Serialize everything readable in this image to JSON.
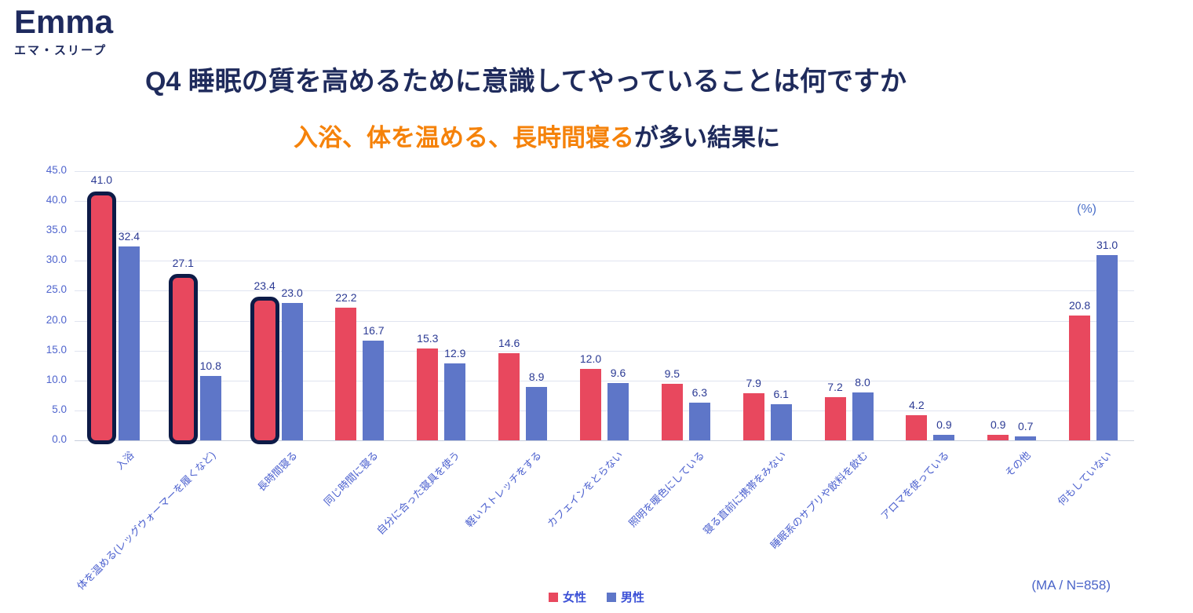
{
  "logo": {
    "brand": "Emma",
    "brand_sub": "エマ・スリープ"
  },
  "header": {
    "title": "Q4 睡眠の質を高めるために意識してやっていることは何ですか",
    "subtitle_highlight": "入浴、体を温める、長時間寝る",
    "subtitle_rest": "が多い結果に"
  },
  "colors": {
    "navy_title": "#1f2b5c",
    "accent_orange": "#f5820a",
    "female_red": "#e8485e",
    "male_blue": "#5e76c8",
    "highlight_outline": "#0d1b47",
    "axis_text_blue": "#4f64cd"
  },
  "chart_data": {
    "type": "bar",
    "title": "Q4 睡眠の質を高めるために意識してやっていることは何ですか",
    "unit_label": "(%)",
    "ylim": [
      0,
      45
    ],
    "ytick_step": 5,
    "grid": true,
    "legend_position": "bottom",
    "categories": [
      "入浴",
      "体を温める(レッグウォーマーを履くなど)",
      "長時間寝る",
      "同じ時間に寝る",
      "自分に合った寝具を使う",
      "軽いストレッチをする",
      "カフェインをとらない",
      "照明を暖色にしている",
      "寝る直前に携帯をみない",
      "睡眠系のサプリや飲料を飲む",
      "アロマを使っている",
      "その他",
      "何もしていない"
    ],
    "series": [
      {
        "name": "女性",
        "color": "#e8485e",
        "values": [
          41.0,
          27.1,
          23.4,
          22.2,
          15.3,
          14.6,
          12.0,
          9.5,
          7.9,
          7.2,
          4.2,
          0.9,
          20.8
        ]
      },
      {
        "name": "男性",
        "color": "#5e76c8",
        "values": [
          32.4,
          10.8,
          23.0,
          16.7,
          12.9,
          8.9,
          9.6,
          6.3,
          6.1,
          8.0,
          0.9,
          0.7,
          31.0
        ]
      }
    ],
    "highlighted_categories": [
      0,
      1,
      2
    ]
  },
  "footer": {
    "note": "(MA / N=858)"
  }
}
